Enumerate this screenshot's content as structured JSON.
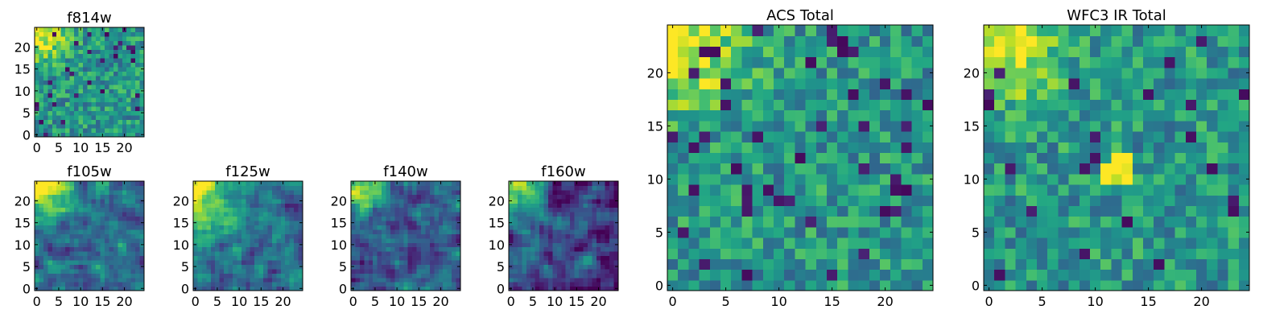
{
  "chart_data": [
    {
      "type": "heatmap",
      "title": "f814w",
      "colormap": "viridis",
      "grid_size": [
        25,
        25
      ],
      "xlim": [
        0,
        24
      ],
      "ylim": [
        0,
        24
      ],
      "xticks": [
        0,
        5,
        10,
        15,
        20
      ],
      "yticks": [
        0,
        5,
        10,
        15,
        20
      ],
      "pattern": "uniform noisy field, bright upper-left",
      "seed": 11,
      "hotspot": [
        1,
        23,
        0.45,
        4
      ]
    },
    {
      "type": "heatmap",
      "title": "f105w",
      "colormap": "viridis",
      "grid_size": [
        25,
        25
      ],
      "xlim": [
        0,
        24
      ],
      "ylim": [
        0,
        24
      ],
      "xticks": [
        0,
        5,
        10,
        15,
        20
      ],
      "yticks": [
        0,
        5,
        10,
        15,
        20
      ],
      "pattern": "smooth field, bright upper-left corner",
      "seed": 23,
      "hotspot": [
        1,
        23,
        0.55,
        5
      ]
    },
    {
      "type": "heatmap",
      "title": "f125w",
      "colormap": "viridis",
      "grid_size": [
        25,
        25
      ],
      "xlim": [
        0,
        24
      ],
      "ylim": [
        0,
        24
      ],
      "xticks": [
        0,
        5,
        10,
        15,
        20
      ],
      "yticks": [
        0,
        5,
        10,
        15,
        20
      ],
      "pattern": "smooth field, bright upper-left corner",
      "seed": 37,
      "hotspot": [
        2,
        22,
        0.5,
        6
      ]
    },
    {
      "type": "heatmap",
      "title": "f140w",
      "colormap": "viridis",
      "grid_size": [
        25,
        25
      ],
      "xlim": [
        0,
        24
      ],
      "ylim": [
        0,
        24
      ],
      "xticks": [
        0,
        5,
        10,
        15,
        20
      ],
      "yticks": [
        0,
        5,
        10,
        15,
        20
      ],
      "pattern": "smooth field, bright upper-left corner, darker overall",
      "seed": 41,
      "hotspot": [
        1,
        23,
        0.6,
        4
      ]
    },
    {
      "type": "heatmap",
      "title": "f160w",
      "colormap": "viridis",
      "grid_size": [
        25,
        25
      ],
      "xlim": [
        0,
        24
      ],
      "ylim": [
        0,
        24
      ],
      "xticks": [
        0,
        5,
        10,
        15,
        20
      ],
      "yticks": [
        0,
        5,
        10,
        15,
        20
      ],
      "pattern": "smooth field, bright upper-left corner, darkest overall",
      "seed": 53,
      "hotspot": [
        1,
        23,
        0.65,
        4
      ]
    },
    {
      "type": "heatmap",
      "title": "ACS Total",
      "colormap": "viridis",
      "grid_size": [
        25,
        25
      ],
      "xlim": [
        0,
        24
      ],
      "ylim": [
        0,
        24
      ],
      "xticks": [
        0,
        5,
        10,
        15,
        20
      ],
      "yticks": [
        0,
        5,
        10,
        15,
        20
      ],
      "pattern": "noisy field, bright upper-left band",
      "seed": 67,
      "hotspot": [
        1,
        22,
        0.45,
        4
      ]
    },
    {
      "type": "heatmap",
      "title": "WFC3 IR Total",
      "colormap": "viridis",
      "grid_size": [
        25,
        25
      ],
      "xlim": [
        0,
        24
      ],
      "ylim": [
        0,
        24
      ],
      "xticks": [
        0,
        5,
        10,
        15,
        20
      ],
      "yticks": [
        0,
        5,
        10,
        15,
        20
      ],
      "pattern": "noisy field, bright upper-left, bright spot near (12, 11)",
      "seed": 79,
      "hotspot": [
        1,
        23,
        0.45,
        4
      ],
      "spot": [
        12,
        11,
        0.55
      ]
    }
  ]
}
